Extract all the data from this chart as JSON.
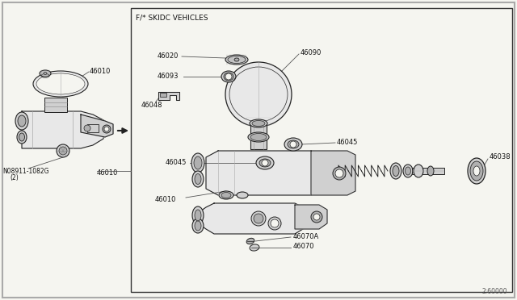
{
  "background_color": "#f5f5f0",
  "border_color": "#888888",
  "box_label": "F/* SKIDC VEHICLES",
  "diagram_ref": "2:60000",
  "fig_width": 6.4,
  "fig_height": 3.72,
  "dpi": 100,
  "lc": "#222222",
  "fc_light": "#e8e8e8",
  "fc_mid": "#d0d0d0",
  "fc_dark": "#b0b0b0",
  "fc_white": "#f5f5f0"
}
